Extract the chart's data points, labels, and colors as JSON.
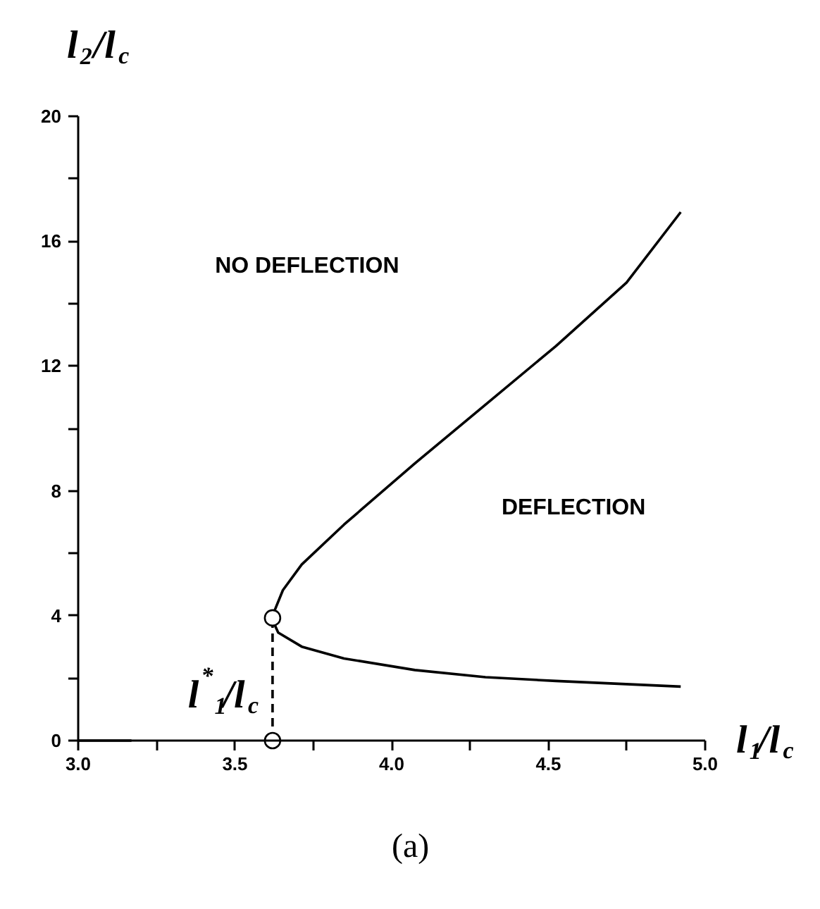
{
  "chart_data": {
    "type": "line",
    "xlabel": "l$_{1}$/l$_{c}$",
    "ylabel": "l$_{2}$/l$_{c}$",
    "xlim": [
      3.0,
      5.0
    ],
    "ylim": [
      0,
      20
    ],
    "xticks": [
      {
        "value": 3.0,
        "label": "3.0"
      },
      {
        "value": 3.25,
        "label": null
      },
      {
        "value": 3.5,
        "label": "3.5"
      },
      {
        "value": 3.75,
        "label": null
      },
      {
        "value": 4.0,
        "label": "4.0"
      },
      {
        "value": 4.25,
        "label": null
      },
      {
        "value": 4.5,
        "label": "4.5"
      },
      {
        "value": 4.75,
        "label": null
      },
      {
        "value": 5.0,
        "label": "5.0"
      }
    ],
    "yticks": [
      0,
      {
        "value": 2,
        "label": null
      },
      4,
      {
        "value": 6,
        "label": null
      },
      8,
      {
        "value": 10,
        "label": null
      },
      12,
      {
        "value": 14,
        "label": null
      },
      16,
      {
        "value": 18,
        "label": null
      },
      20
    ],
    "grid": false,
    "series": [
      {
        "color": "#000000",
        "marker": "none",
        "line_style": "solid",
        "x": [
          4.922,
          4.524,
          4.299,
          4.074,
          3.848,
          3.713,
          3.638,
          3.617,
          3.653,
          3.713,
          3.848,
          4.074,
          4.299,
          4.524,
          4.749,
          4.922
        ],
        "values": [
          1.73,
          1.91,
          2.03,
          2.26,
          2.63,
          3.01,
          3.46,
          3.93,
          4.82,
          5.64,
          6.92,
          8.88,
          10.76,
          12.64,
          14.67,
          16.93
        ]
      },
      {
        "color": "#000000",
        "marker": "none",
        "line_style": "solid",
        "x": [
          3.0,
          3.17
        ],
        "values": [
          0,
          0
        ]
      },
      {
        "color": "#000000",
        "marker": "circle",
        "line_style": "dashed",
        "x": [
          3.62,
          3.62
        ],
        "values": [
          0,
          3.93
        ]
      }
    ],
    "annotations": [
      "NO DEFLECTION",
      "DEFLECTION",
      "(a)",
      {
        "text": "l$^{*}$$_{1}$/l$_{c}$",
        "x": 3.62,
        "y": 0
      }
    ]
  }
}
